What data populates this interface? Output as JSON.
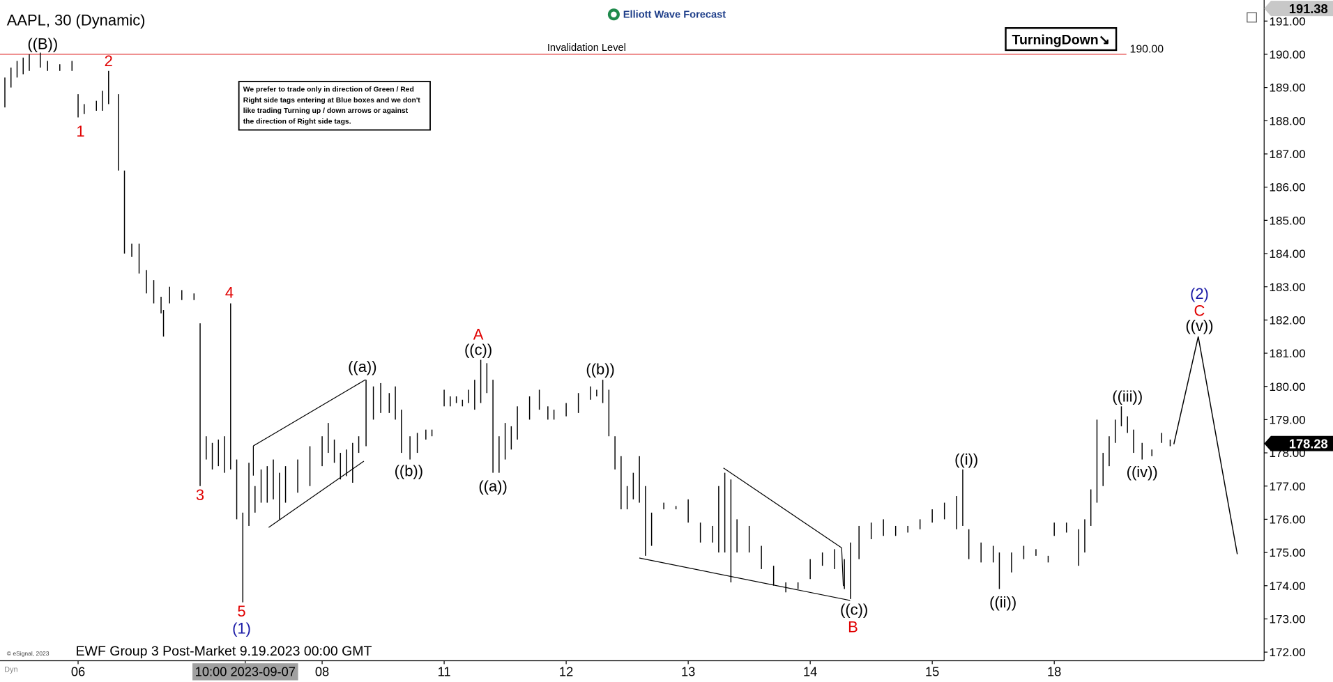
{
  "chart_data": {
    "type": "hilo",
    "title": "AAPL, 30 (Dynamic)",
    "brand": "Elliott Wave Forecast",
    "footer": "EWF Group 3 Post-Market 9.19.2023 00:00 GMT",
    "copyright": "© eSignal, 2023",
    "corner_label": "Dyn",
    "status_tag": "TurningDown↘",
    "note": [
      "We prefer to trade only in direction of Green / Red",
      "Right side tags entering at Blue boxes and we don't",
      "like trading Turning up / down arrows or against",
      "the direction of Right side tags."
    ],
    "invalidation": {
      "label": "Invalidation Level",
      "value": 190,
      "value_label": "190.00"
    },
    "last_price": {
      "value": 178.28,
      "label": "178.28"
    },
    "scale_high": {
      "value": 191.38,
      "label": "191.38"
    },
    "color": "#000000",
    "xlim": [
      -0.64,
      9.72
    ],
    "ylim": [
      171.74,
      191.43
    ],
    "xticks": [
      {
        "value": 0,
        "label": "06"
      },
      {
        "value": 1.37,
        "label": "10:00 2023-09-07"
      },
      {
        "value": 2,
        "label": "08"
      },
      {
        "value": 3,
        "label": "11"
      },
      {
        "value": 4,
        "label": "12"
      },
      {
        "value": 5,
        "label": "13"
      },
      {
        "value": 6,
        "label": "14"
      },
      {
        "value": 7,
        "label": "15"
      },
      {
        "value": 8,
        "label": "18"
      }
    ],
    "yticks": [
      {
        "value": 172,
        "label": "172.00"
      },
      {
        "value": 173,
        "label": "173.00"
      },
      {
        "value": 174,
        "label": "174.00"
      },
      {
        "value": 175,
        "label": "175.00"
      },
      {
        "value": 176,
        "label": "176.00"
      },
      {
        "value": 177,
        "label": "177.00"
      },
      {
        "value": 178,
        "label": "178.00"
      },
      {
        "value": 179,
        "label": "179.00"
      },
      {
        "value": 180,
        "label": "180.00"
      },
      {
        "value": 181,
        "label": "181.00"
      },
      {
        "value": 182,
        "label": "182.00"
      },
      {
        "value": 183,
        "label": "183.00"
      },
      {
        "value": 184,
        "label": "184.00"
      },
      {
        "value": 185,
        "label": "185.00"
      },
      {
        "value": 186,
        "label": "186.00"
      },
      {
        "value": 187,
        "label": "187.00"
      },
      {
        "value": 188,
        "label": "188.00"
      },
      {
        "value": 189,
        "label": "189.00"
      },
      {
        "value": 190,
        "label": "190.00"
      },
      {
        "value": 191,
        "label": "191.00"
      }
    ],
    "x": [
      -0.6,
      -0.55,
      -0.5,
      -0.45,
      -0.4,
      -0.31,
      -0.25,
      -0.15,
      -0.05,
      0,
      0.05,
      0.15,
      0.2,
      0.25,
      0.33,
      0.38,
      0.44,
      0.5,
      0.56,
      0.62,
      0.68,
      0.7,
      0.75,
      0.85,
      0.95,
      1.0,
      1.05,
      1.1,
      1.15,
      1.2,
      1.25,
      1.3,
      1.35,
      1.4,
      1.45,
      1.5,
      1.55,
      1.6,
      1.65,
      1.7,
      1.8,
      1.9,
      2.0,
      2.05,
      2.1,
      2.15,
      2.2,
      2.25,
      2.3,
      2.36,
      2.42,
      2.48,
      2.55,
      2.6,
      2.65,
      2.72,
      2.78,
      2.85,
      2.9,
      3.0,
      3.05,
      3.1,
      3.15,
      3.2,
      3.25,
      3.3,
      3.35,
      3.4,
      3.45,
      3.5,
      3.55,
      3.6,
      3.7,
      3.78,
      3.85,
      3.9,
      4.0,
      4.1,
      4.2,
      4.25,
      4.3,
      4.35,
      4.4,
      4.45,
      4.5,
      4.55,
      4.6,
      4.65,
      4.7,
      4.8,
      4.9,
      5.0,
      5.1,
      5.2,
      5.25,
      5.3,
      5.35,
      5.4,
      5.5,
      5.6,
      5.7,
      5.8,
      5.9,
      6.0,
      6.1,
      6.2,
      6.28,
      6.33,
      6.4,
      6.5,
      6.6,
      6.7,
      6.8,
      6.9,
      7.0,
      7.1,
      7.2,
      7.25,
      7.3,
      7.4,
      7.5,
      7.55,
      7.65,
      7.75,
      7.85,
      7.95,
      8.0,
      8.1,
      8.2,
      8.25,
      8.3,
      8.35,
      8.4,
      8.45,
      8.5,
      8.55,
      8.6,
      8.65,
      8.72,
      8.8,
      8.88,
      8.95
    ],
    "high": [
      189.3,
      189.6,
      189.8,
      189.9,
      190.0,
      190.05,
      189.8,
      189.7,
      189.8,
      188.8,
      188.5,
      188.6,
      188.9,
      189.5,
      188.8,
      186.5,
      184.3,
      184.3,
      183.5,
      183.2,
      182.7,
      182.3,
      183.0,
      182.9,
      182.8,
      181.9,
      178.5,
      178.3,
      178.4,
      178.5,
      182.5,
      177.8,
      176.2,
      177.7,
      177.0,
      177.5,
      177.6,
      177.8,
      177.4,
      177.6,
      177.8,
      178.2,
      178.5,
      178.9,
      178.4,
      178.0,
      178.1,
      178.3,
      178.5,
      180.2,
      180.0,
      180.1,
      179.8,
      180.0,
      179.3,
      178.5,
      178.6,
      178.7,
      178.7,
      179.9,
      179.7,
      179.7,
      179.6,
      179.9,
      180.2,
      180.8,
      180.7,
      180.2,
      178.5,
      178.9,
      178.8,
      179.4,
      179.7,
      179.9,
      179.4,
      179.3,
      179.5,
      179.8,
      180.0,
      179.9,
      180.2,
      179.9,
      178.5,
      177.9,
      177.0,
      177.4,
      177.9,
      177.0,
      176.2,
      176.5,
      176.4,
      176.6,
      175.9,
      175.8,
      177.0,
      177.4,
      177.2,
      176.0,
      175.8,
      175.2,
      174.6,
      174.1,
      174.1,
      174.8,
      175.0,
      175.1,
      174.8,
      175.3,
      175.8,
      175.9,
      176.0,
      175.8,
      175.8,
      176.0,
      176.3,
      176.5,
      176.7,
      177.5,
      175.7,
      175.3,
      175.2,
      175.0,
      175.0,
      175.2,
      175.1,
      174.9,
      175.9,
      175.9,
      175.7,
      176.0,
      176.9,
      179.0,
      178.0,
      178.5,
      179.0,
      179.4,
      179.1,
      178.7,
      178.3,
      178.1,
      178.6,
      178.4
    ],
    "low": [
      188.4,
      189.0,
      189.3,
      189.4,
      189.5,
      189.6,
      189.5,
      189.5,
      189.5,
      188.1,
      188.2,
      188.3,
      188.3,
      188.5,
      186.5,
      184.0,
      183.9,
      183.4,
      182.8,
      182.5,
      182.2,
      181.5,
      182.5,
      182.6,
      182.6,
      177.0,
      177.8,
      177.5,
      177.6,
      177.4,
      177.5,
      176.0,
      173.5,
      175.8,
      176.2,
      176.5,
      176.5,
      176.6,
      176.0,
      176.5,
      176.8,
      177.0,
      177.6,
      178.0,
      177.7,
      177.2,
      177.3,
      177.1,
      178.0,
      178.2,
      179.0,
      179.2,
      179.2,
      179.0,
      178.0,
      177.8,
      178.0,
      178.4,
      178.5,
      179.4,
      179.4,
      179.5,
      179.4,
      179.5,
      179.3,
      179.5,
      179.8,
      177.4,
      177.4,
      177.8,
      178.1,
      178.4,
      179.0,
      179.3,
      179.0,
      179.0,
      179.1,
      179.2,
      179.6,
      179.7,
      179.5,
      178.5,
      177.5,
      176.3,
      176.3,
      176.6,
      176.5,
      174.9,
      175.2,
      176.3,
      176.3,
      175.9,
      175.3,
      175.3,
      175.0,
      175.0,
      174.1,
      175.0,
      175.0,
      174.5,
      174.0,
      173.8,
      173.9,
      174.2,
      174.6,
      174.5,
      173.9,
      173.6,
      174.8,
      175.4,
      175.5,
      175.5,
      175.6,
      175.7,
      175.9,
      176.0,
      175.7,
      175.8,
      174.8,
      174.7,
      174.7,
      173.9,
      174.4,
      174.8,
      174.9,
      174.7,
      175.5,
      175.6,
      174.6,
      175.0,
      175.8,
      176.5,
      177.0,
      177.6,
      178.3,
      178.8,
      178.6,
      178.0,
      177.8,
      177.9,
      178.3,
      178.2
    ],
    "projection": {
      "x": [
        8.98,
        9.18,
        9.5
      ],
      "y": [
        178.26,
        181.5,
        174.95
      ]
    },
    "wave_labels": [
      {
        "text": "((B))",
        "x": -0.29,
        "y": 190.31,
        "color": "#000000"
      },
      {
        "text": "2",
        "x": 0.25,
        "y": 189.8,
        "color": "#e00000"
      },
      {
        "text": "1",
        "x": 0.02,
        "y": 187.68,
        "color": "#e00000"
      },
      {
        "text": "4",
        "x": 1.24,
        "y": 182.82,
        "color": "#e00000"
      },
      {
        "text": "3",
        "x": 1.0,
        "y": 176.73,
        "color": "#e00000"
      },
      {
        "text": "5",
        "x": 1.34,
        "y": 173.23,
        "color": "#e00000"
      },
      {
        "text": "(1)",
        "x": 1.34,
        "y": 172.71,
        "color": "#1a1aa6"
      },
      {
        "text": "((a))",
        "x": 2.33,
        "y": 180.59,
        "color": "#000000"
      },
      {
        "text": "((b))",
        "x": 2.71,
        "y": 177.45,
        "color": "#000000"
      },
      {
        "text": "A",
        "x": 3.28,
        "y": 181.56,
        "color": "#e00000"
      },
      {
        "text": "((c))",
        "x": 3.28,
        "y": 181.1,
        "color": "#000000"
      },
      {
        "text": "((a))",
        "x": 3.4,
        "y": 176.99,
        "color": "#000000"
      },
      {
        "text": "((b))",
        "x": 4.28,
        "y": 180.51,
        "color": "#000000"
      },
      {
        "text": "((c))",
        "x": 6.36,
        "y": 173.28,
        "color": "#000000"
      },
      {
        "text": "B",
        "x": 6.35,
        "y": 172.75,
        "color": "#e00000"
      },
      {
        "text": "((i))",
        "x": 7.28,
        "y": 177.8,
        "color": "#000000"
      },
      {
        "text": "((ii))",
        "x": 7.58,
        "y": 173.5,
        "color": "#000000"
      },
      {
        "text": "((iii))",
        "x": 8.6,
        "y": 179.7,
        "color": "#000000"
      },
      {
        "text": "((iv))",
        "x": 8.72,
        "y": 177.42,
        "color": "#000000"
      },
      {
        "text": "(2)",
        "x": 9.19,
        "y": 182.79,
        "color": "#1a1aa6"
      },
      {
        "text": "C",
        "x": 9.19,
        "y": 182.28,
        "color": "#e00000"
      },
      {
        "text": "((v))",
        "x": 9.19,
        "y": 181.82,
        "color": "#000000"
      }
    ]
  }
}
